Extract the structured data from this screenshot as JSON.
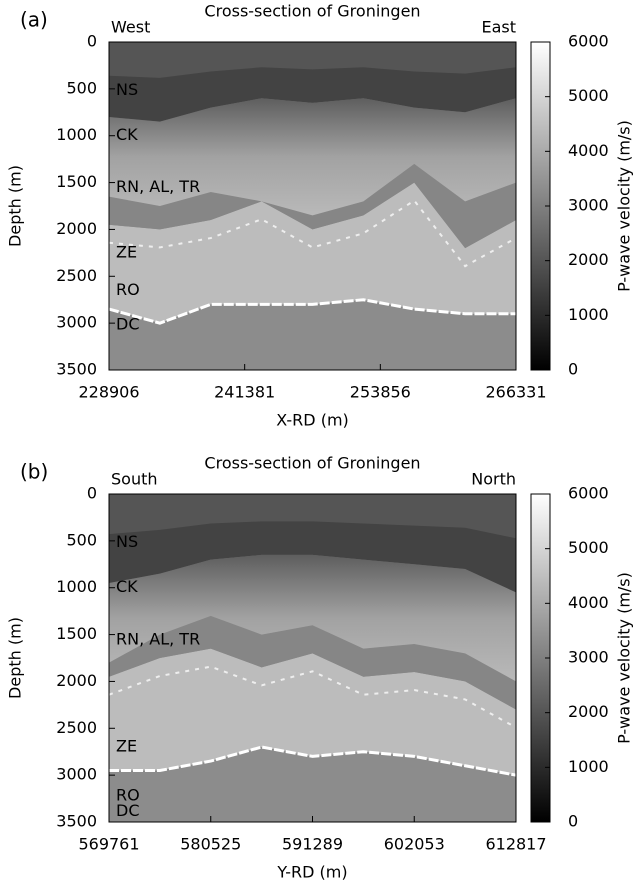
{
  "chart_data": [
    {
      "type": "heatmap",
      "panel_label": "(a)",
      "title": "Cross-section of Groningen",
      "left_label": "West",
      "right_label": "East",
      "x_label": "X-RD (m)",
      "y_label": "Depth (m)",
      "colorbar_label": "P-wave velocity (m/s)",
      "xlim": [
        228906,
        266331
      ],
      "xticks": [
        228906,
        241381,
        253856,
        266331
      ],
      "ylim": [
        3500,
        0
      ],
      "yticks": [
        0,
        500,
        1000,
        1500,
        2000,
        2500,
        3000,
        3500
      ],
      "clim": [
        0,
        6000
      ],
      "cticks": [
        0,
        1000,
        2000,
        3000,
        4000,
        5000,
        6000
      ],
      "annotations": [
        "NS",
        "CK",
        "RN, AL, TR",
        "ZE",
        "RO",
        "DC"
      ]
    },
    {
      "type": "heatmap",
      "panel_label": "(b)",
      "title": "Cross-section of Groningen",
      "left_label": "South",
      "right_label": "North",
      "x_label": "Y-RD (m)",
      "y_label": "Depth (m)",
      "colorbar_label": "P-wave velocity (m/s)",
      "xlim": [
        569761,
        612817
      ],
      "xticks": [
        569761,
        580525,
        591289,
        602053,
        612817
      ],
      "ylim": [
        3500,
        0
      ],
      "yticks": [
        0,
        500,
        1000,
        1500,
        2000,
        2500,
        3000,
        3500
      ],
      "clim": [
        0,
        6000
      ],
      "cticks": [
        0,
        1000,
        2000,
        3000,
        4000,
        5000,
        6000
      ],
      "annotations": [
        "NS",
        "CK",
        "RN, AL, TR",
        "ZE",
        "RO",
        "DC"
      ]
    }
  ]
}
